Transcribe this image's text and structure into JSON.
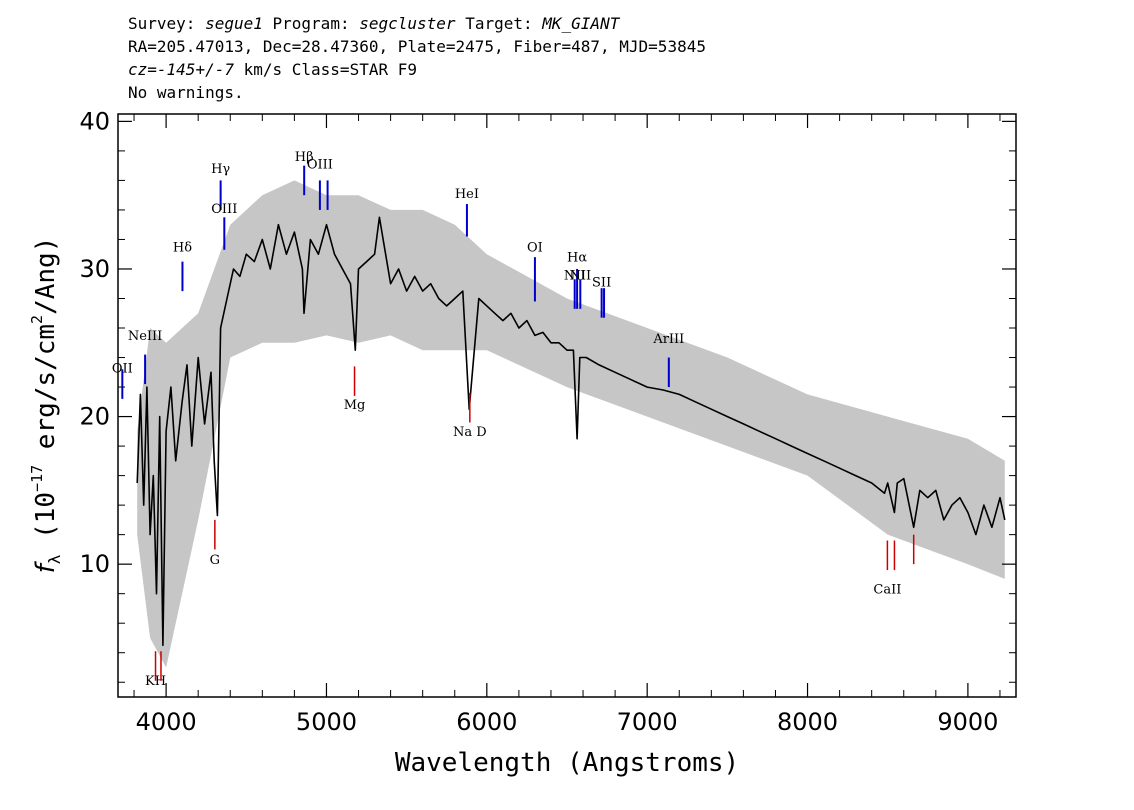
{
  "header": {
    "line1": {
      "survey_label": "Survey:",
      "survey": "segue1",
      "program_label": "Program:",
      "program": "segcluster",
      "target_label": "Target:",
      "target": "MK_GIANT"
    },
    "line2": "RA=205.47013, Dec=28.47360, Plate=2475, Fiber=487, MJD=53845",
    "line3": {
      "cz_label": "cz=",
      "cz_value": "-145+/-7",
      "cz_units_class": " km/s Class=STAR F9"
    },
    "line4": "No warnings."
  },
  "chart_data": {
    "type": "line",
    "xlabel": "Wavelength (Angstroms)",
    "ylabel": "f_λ (10^-17 erg/s/cm²/Ang)",
    "ylabel_parts": {
      "f": "f",
      "lambda": "λ",
      "open": " (10",
      "exp": "−17",
      "mid": " erg/s/cm",
      "sq": "2",
      "close": "/Ang)"
    },
    "xlim": [
      3700,
      9300
    ],
    "ylim": [
      1,
      40.5
    ],
    "xticks": [
      4000,
      5000,
      6000,
      7000,
      8000,
      9000
    ],
    "yticks": [
      10,
      20,
      30,
      40
    ],
    "series": [
      {
        "color": "#000000",
        "x": [
          3820,
          3840,
          3860,
          3880,
          3900,
          3920,
          3940,
          3960,
          3980,
          4000,
          4030,
          4060,
          4100,
          4130,
          4160,
          4200,
          4240,
          4280,
          4300,
          4320,
          4340,
          4380,
          4420,
          4460,
          4500,
          4550,
          4600,
          4650,
          4700,
          4750,
          4800,
          4850,
          4860,
          4900,
          4950,
          5000,
          5050,
          5100,
          5150,
          5180,
          5200,
          5250,
          5300,
          5330,
          5400,
          5450,
          5500,
          5550,
          5600,
          5650,
          5700,
          5750,
          5800,
          5850,
          5890,
          5950,
          6000,
          6050,
          6100,
          6150,
          6200,
          6250,
          6300,
          6350,
          6400,
          6450,
          6500,
          6540,
          6563,
          6580,
          6620,
          6700,
          6800,
          6900,
          7000,
          7100,
          7200,
          7300,
          7400,
          7500,
          7600,
          7700,
          7800,
          7900,
          8000,
          8100,
          8200,
          8300,
          8400,
          8480,
          8500,
          8542,
          8560,
          8600,
          8662,
          8700,
          8750,
          8800,
          8850,
          8900,
          8950,
          9000,
          9050,
          9100,
          9150,
          9200,
          9230
        ],
        "y": [
          15.5,
          21.5,
          14,
          22,
          12,
          16,
          8,
          20,
          4.5,
          19,
          22,
          17,
          21,
          23.5,
          18,
          24,
          19.5,
          23,
          17,
          13.3,
          26,
          28,
          30,
          29.5,
          31,
          30.5,
          32,
          30,
          33,
          31,
          32.5,
          30,
          27,
          32,
          31,
          33,
          31,
          30,
          29,
          24.5,
          30,
          30.5,
          31,
          33.5,
          29,
          30,
          28.5,
          29.5,
          28.5,
          29,
          28,
          27.5,
          28,
          28.5,
          20.5,
          28,
          27.5,
          27,
          26.5,
          27,
          26,
          26.5,
          25.5,
          25.7,
          25,
          25,
          24.5,
          24.5,
          18.5,
          24,
          24,
          23.5,
          23,
          22.5,
          22,
          21.8,
          21.5,
          21,
          20.5,
          20,
          19.5,
          19,
          18.5,
          18,
          17.5,
          17,
          16.5,
          16,
          15.5,
          14.8,
          15.5,
          13.5,
          15.5,
          15.8,
          12.5,
          15,
          14.5,
          15,
          13,
          14,
          14.5,
          13.5,
          12,
          14,
          12.5,
          14.5,
          13
        ]
      }
    ],
    "noise_band": {
      "color": "#c0c0c0",
      "x": [
        3820,
        3900,
        4000,
        4200,
        4400,
        4600,
        4800,
        5000,
        5200,
        5400,
        5600,
        5800,
        6000,
        6500,
        7000,
        7500,
        8000,
        8500,
        9000,
        9230
      ],
      "upper": [
        19,
        26,
        25,
        27,
        33,
        35,
        36,
        35,
        35,
        34,
        34,
        33,
        31,
        28,
        26,
        24,
        21.5,
        20,
        18.5,
        17
      ],
      "lower": [
        12,
        5,
        3,
        13,
        24,
        25,
        25,
        25.5,
        25,
        25.5,
        24.5,
        24.5,
        24.5,
        22,
        20,
        18,
        16,
        12,
        10,
        9
      ]
    },
    "emission_lines": [
      {
        "label": "NeIII",
        "wave": 3869,
        "y0": 22.2,
        "y1": 24.2,
        "label_y": 25.2
      },
      {
        "label": "OII",
        "wave": 3727,
        "y0": 21.2,
        "y1": 23.2,
        "label_y": 23
      },
      {
        "label": "Hδ",
        "wave": 4102,
        "y0": 28.5,
        "y1": 30.5,
        "label_y": 31.2
      },
      {
        "label": "Hγ",
        "wave": 4340,
        "y0": 34.0,
        "y1": 36.0,
        "label_y": 36.5
      },
      {
        "label": "OIII",
        "wave": 4363,
        "y0": 31.3,
        "y1": 33.5,
        "label_y": 33.8
      },
      {
        "label": "Hβ",
        "wave": 4861,
        "y0": 35.0,
        "y1": 37.0,
        "label_y": 37.3
      },
      {
        "label": "OIII",
        "wave": 4959,
        "y0": 34.0,
        "y1": 36.0,
        "label_y": 36.8
      },
      {
        "label": "",
        "wave": 5007,
        "y0": 34.0,
        "y1": 36.0,
        "label_y": 36.8
      },
      {
        "label": "HeI",
        "wave": 5876,
        "y0": 32.2,
        "y1": 34.4,
        "label_y": 34.8
      },
      {
        "label": "OI",
        "wave": 6300,
        "y0": 27.8,
        "y1": 30.8,
        "label_y": 31.2
      },
      {
        "label": "NII",
        "wave": 6548,
        "y0": 27.3,
        "y1": 29.3,
        "label_y": 29.3
      },
      {
        "label": "Hα",
        "wave": 6563,
        "y0": 27.3,
        "y1": 30.0,
        "label_y": 30.5
      },
      {
        "label": "NII",
        "wave": 6583,
        "y0": 27.3,
        "y1": 29.3,
        "label_y": 29.3
      },
      {
        "label": "SII",
        "wave": 6716,
        "y0": 26.7,
        "y1": 28.7,
        "label_y": 28.8
      },
      {
        "label": "",
        "wave": 6731,
        "y0": 26.7,
        "y1": 28.7,
        "label_y": 28.8
      },
      {
        "label": "ArIII",
        "wave": 7135,
        "y0": 22.0,
        "y1": 24.0,
        "label_y": 25.0
      }
    ],
    "absorption_lines": [
      {
        "label": "KH",
        "wave": 3934,
        "y0": 2.1,
        "y1": 4.1,
        "label_y": 1.8
      },
      {
        "label": "",
        "wave": 3968,
        "y0": 2.1,
        "y1": 4.1,
        "label_y": 1.8
      },
      {
        "label": "G",
        "wave": 4304,
        "y0": 11.0,
        "y1": 13.0,
        "label_y": 10.0
      },
      {
        "label": "Mg",
        "wave": 5175,
        "y0": 21.4,
        "y1": 23.4,
        "label_y": 20.5
      },
      {
        "label": "Na D",
        "wave": 5894,
        "y0": 19.6,
        "y1": 21.6,
        "label_y": 18.7
      },
      {
        "label": "CaII",
        "wave": 8498,
        "y0": 9.6,
        "y1": 11.6,
        "label_y": 8.0
      },
      {
        "label": "",
        "wave": 8542,
        "y0": 9.6,
        "y1": 11.6,
        "label_y": 8.0
      },
      {
        "label": "",
        "wave": 8662,
        "y0": 10.0,
        "y1": 12.0,
        "label_y": 8.0
      }
    ],
    "emission_color": "#0000cc",
    "absorption_color": "#cc0000"
  }
}
